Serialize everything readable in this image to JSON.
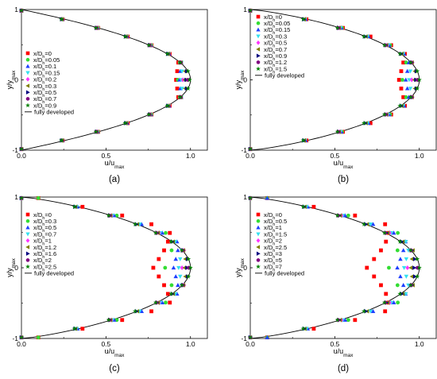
{
  "figure": {
    "captions": [
      "(a)",
      "(b)",
      "(c)",
      "(d)"
    ]
  },
  "chart_data": [
    {
      "type": "scatter",
      "caption": "(a)",
      "xlabel": "u/u_max",
      "ylabel": "y/y_max",
      "xlim": [
        0,
        1.1
      ],
      "ylim": [
        -1,
        1
      ],
      "xticks": [
        "0.0",
        "0.5",
        "1.0"
      ],
      "yticks": [
        "1",
        "0",
        "-1"
      ],
      "grid": false,
      "legend_position": "center-left",
      "profile_shape": 1.0,
      "series": [
        {
          "name": "x/Dh=0",
          "sub": "h",
          "value": "=0",
          "marker": "square",
          "color": "#ff0000",
          "u_center": 0.915,
          "plateau": 0.1
        },
        {
          "name": "x/Dh=0.05",
          "sub": "h",
          "value": "=0.05",
          "marker": "circle",
          "color": "#33dd33",
          "u_center": 0.925,
          "plateau": 0.09
        },
        {
          "name": "x/Dh=0.1",
          "sub": "h",
          "value": "=0.1",
          "marker": "triangle-up",
          "color": "#1f3fff",
          "u_center": 0.935,
          "plateau": 0.08
        },
        {
          "name": "x/Dh=0.15",
          "sub": "h",
          "value": "=0.15",
          "marker": "triangle-down",
          "color": "#33e0f0",
          "u_center": 0.945,
          "plateau": 0.07
        },
        {
          "name": "x/Dh=0.2",
          "sub": "h",
          "value": "=0.2",
          "marker": "diamond",
          "color": "#ff33ff",
          "u_center": 0.955,
          "plateau": 0.06
        },
        {
          "name": "x/Dh=0.3",
          "sub": "h",
          "value": "=0.3",
          "marker": "triangle-left",
          "color": "#808000",
          "u_center": 0.965,
          "plateau": 0.05
        },
        {
          "name": "x/Dh=0.5",
          "sub": "h",
          "value": "=0.5",
          "marker": "triangle-right",
          "color": "#000080",
          "u_center": 0.975,
          "plateau": 0.04
        },
        {
          "name": "x/Dh=0.7",
          "sub": "h",
          "value": "=0.7",
          "marker": "hexagon",
          "color": "#800080",
          "u_center": 0.985,
          "plateau": 0.03
        },
        {
          "name": "x/Dh=0.9",
          "sub": "h",
          "value": "=0.9",
          "marker": "star",
          "color": "#008000",
          "u_center": 0.995,
          "plateau": 0.02
        }
      ],
      "reference": {
        "name": "fully developed",
        "color": "#000000"
      }
    },
    {
      "type": "scatter",
      "caption": "(b)",
      "xlabel": "u/u_max",
      "ylabel": "y/y_max",
      "xlim": [
        0,
        1.1
      ],
      "ylim": [
        -1,
        1
      ],
      "xticks": [
        "0.0",
        "0.5",
        "1.0"
      ],
      "yticks": [
        "1",
        "0",
        "-1"
      ],
      "grid": false,
      "legend_position": "top-left",
      "profile_shape": 1.25,
      "series": [
        {
          "name": "x/Dh=0",
          "sub": "h",
          "value": "=0",
          "marker": "square",
          "color": "#ff0000",
          "u_center": 0.88,
          "plateau": 0.2
        },
        {
          "name": "x/Dh=0.05",
          "sub": "h",
          "value": "=0.05",
          "marker": "circle",
          "color": "#33dd33",
          "u_center": 0.9,
          "plateau": 0.17
        },
        {
          "name": "x/Dh=0.15",
          "sub": "h",
          "value": "=0.15",
          "marker": "triangle-up",
          "color": "#1f3fff",
          "u_center": 0.92,
          "plateau": 0.14
        },
        {
          "name": "x/Dh=0.3",
          "sub": "h",
          "value": "=0.3",
          "marker": "triangle-down",
          "color": "#33e0f0",
          "u_center": 0.94,
          "plateau": 0.11
        },
        {
          "name": "x/Dh=0.5",
          "sub": "h",
          "value": "=0.5",
          "marker": "diamond",
          "color": "#ff33ff",
          "u_center": 0.955,
          "plateau": 0.08
        },
        {
          "name": "x/Dh=0.7",
          "sub": "h",
          "value": "=0.7",
          "marker": "triangle-left",
          "color": "#808000",
          "u_center": 0.97,
          "plateau": 0.06
        },
        {
          "name": "x/Dh=0.9",
          "sub": "h",
          "value": "=0.9",
          "marker": "triangle-right",
          "color": "#000080",
          "u_center": 0.98,
          "plateau": 0.04
        },
        {
          "name": "x/Dh=1.2",
          "sub": "h",
          "value": "=1.2",
          "marker": "hexagon",
          "color": "#800080",
          "u_center": 0.99,
          "plateau": 0.02
        },
        {
          "name": "x/Dh=1.5",
          "sub": "h",
          "value": "=1.5",
          "marker": "star",
          "color": "#008000",
          "u_center": 1.0,
          "plateau": 0.0
        }
      ],
      "reference": {
        "name": "fully developed",
        "color": "#000000"
      }
    },
    {
      "type": "scatter",
      "caption": "(c)",
      "xlabel": "u/u_max",
      "ylabel": "y/y_max",
      "xlim": [
        0,
        1.1
      ],
      "ylim": [
        -1,
        1
      ],
      "xticks": [
        "0.0",
        "0.5",
        "1.0"
      ],
      "yticks": [
        "1",
        "0",
        "-1"
      ],
      "grid": false,
      "legend_position": "center-left",
      "profile_shape": 1.25,
      "series": [
        {
          "name": "x/Dh=0",
          "sub": "h",
          "value": "=0",
          "marker": "square",
          "color": "#ff0000",
          "u_center": 0.78,
          "plateau": 0.5
        },
        {
          "name": "x/Dh=0.3",
          "sub": "h",
          "value": "=0.3",
          "marker": "circle",
          "color": "#33dd33",
          "u_center": 0.85,
          "plateau": 0.3
        },
        {
          "name": "x/Dh=0.5",
          "sub": "h",
          "value": "=0.5",
          "marker": "triangle-up",
          "color": "#1f3fff",
          "u_center": 0.9,
          "plateau": 0.2
        },
        {
          "name": "x/Dh=0.7",
          "sub": "h",
          "value": "=0.7",
          "marker": "triangle-down",
          "color": "#33e0f0",
          "u_center": 0.93,
          "plateau": 0.14
        },
        {
          "name": "x/Dh=1",
          "sub": "h",
          "value": "=1",
          "marker": "diamond",
          "color": "#ff33ff",
          "u_center": 0.95,
          "plateau": 0.1
        },
        {
          "name": "x/Dh=1.2",
          "sub": "h",
          "value": "=1.2",
          "marker": "triangle-left",
          "color": "#808000",
          "u_center": 0.965,
          "plateau": 0.07
        },
        {
          "name": "x/Dh=1.6",
          "sub": "h",
          "value": "=1.6",
          "marker": "triangle-right",
          "color": "#000080",
          "u_center": 0.98,
          "plateau": 0.04
        },
        {
          "name": "x/Dh=2",
          "sub": "h",
          "value": "=2",
          "marker": "hexagon",
          "color": "#800080",
          "u_center": 0.99,
          "plateau": 0.02
        },
        {
          "name": "x/Dh=2.5",
          "sub": "h",
          "value": "=2.5",
          "marker": "star",
          "color": "#008000",
          "u_center": 1.0,
          "plateau": 0.0
        }
      ],
      "reference": {
        "name": "fully developed",
        "color": "#000000"
      }
    },
    {
      "type": "scatter",
      "caption": "(d)",
      "xlabel": "u/u_max",
      "ylabel": "y/y_max",
      "xlim": [
        0,
        1.1
      ],
      "ylim": [
        -1,
        1
      ],
      "xticks": [
        "0.0",
        "0.5",
        "1.0"
      ],
      "yticks": [
        "1",
        "0",
        "-1"
      ],
      "grid": false,
      "legend_position": "center-left",
      "profile_shape": 1.25,
      "series": [
        {
          "name": "x/Dh=0",
          "sub": "h",
          "value": "=0",
          "marker": "square",
          "color": "#ff0000",
          "u_center": 0.69,
          "plateau": 0.65
        },
        {
          "name": "x/Dh=0.5",
          "sub": "h",
          "value": "=0.5",
          "marker": "circle",
          "color": "#33dd33",
          "u_center": 0.82,
          "plateau": 0.4
        },
        {
          "name": "x/Dh=1",
          "sub": "h",
          "value": "=1",
          "marker": "triangle-up",
          "color": "#1f3fff",
          "u_center": 0.87,
          "plateau": 0.28
        },
        {
          "name": "x/Dh=1.5",
          "sub": "h",
          "value": "=1.5",
          "marker": "triangle-down",
          "color": "#33e0f0",
          "u_center": 0.91,
          "plateau": 0.2
        },
        {
          "name": "x/Dh=2",
          "sub": "h",
          "value": "=2",
          "marker": "diamond",
          "color": "#ff33ff",
          "u_center": 0.93,
          "plateau": 0.15
        },
        {
          "name": "x/Dh=2.5",
          "sub": "h",
          "value": "=2.5",
          "marker": "triangle-left",
          "color": "#808000",
          "u_center": 0.95,
          "plateau": 0.1
        },
        {
          "name": "x/Dh=3",
          "sub": "h",
          "value": "=3",
          "marker": "triangle-right",
          "color": "#000080",
          "u_center": 0.97,
          "plateau": 0.06
        },
        {
          "name": "x/Dh=5",
          "sub": "h",
          "value": "=5",
          "marker": "hexagon",
          "color": "#800080",
          "u_center": 0.99,
          "plateau": 0.02
        },
        {
          "name": "x/Dh=7",
          "sub": "h",
          "value": "=7",
          "marker": "star",
          "color": "#008000",
          "u_center": 1.0,
          "plateau": 0.0
        }
      ],
      "reference": {
        "name": "fully developed",
        "color": "#000000"
      }
    }
  ]
}
